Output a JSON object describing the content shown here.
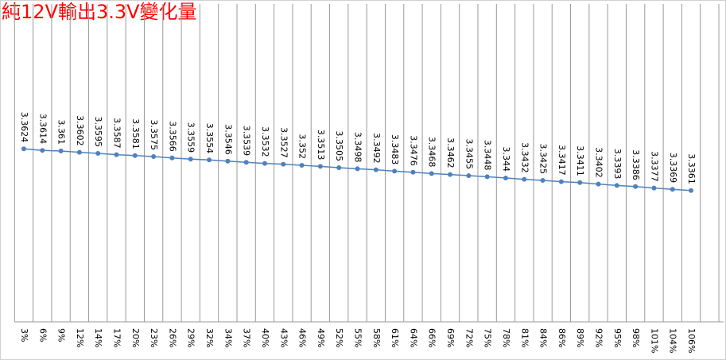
{
  "chart_data": {
    "type": "line",
    "title": "純12V輸出3.3V變化量",
    "categories": [
      "3%",
      "6%",
      "9%",
      "12%",
      "14%",
      "17%",
      "20%",
      "23%",
      "26%",
      "29%",
      "32%",
      "34%",
      "37%",
      "40%",
      "43%",
      "46%",
      "49%",
      "52%",
      "55%",
      "58%",
      "61%",
      "64%",
      "66%",
      "69%",
      "72%",
      "75%",
      "78%",
      "81%",
      "84%",
      "86%",
      "89%",
      "92%",
      "95%",
      "98%",
      "101%",
      "104%",
      "106%"
    ],
    "values": [
      3.3624,
      3.3614,
      3.361,
      3.3602,
      3.3595,
      3.3587,
      3.3581,
      3.3575,
      3.3566,
      3.3559,
      3.3554,
      3.3546,
      3.3539,
      3.3532,
      3.3527,
      3.352,
      3.3513,
      3.3505,
      3.3498,
      3.3492,
      3.3483,
      3.3476,
      3.3468,
      3.3462,
      3.3455,
      3.3448,
      3.344,
      3.3432,
      3.3425,
      3.3417,
      3.3411,
      3.3402,
      3.3393,
      3.3386,
      3.3377,
      3.3369,
      3.3361
    ],
    "color": "#4f81bd",
    "title_color": "#ff0000",
    "ylim": [
      3.25,
      3.45
    ],
    "grid": true
  }
}
